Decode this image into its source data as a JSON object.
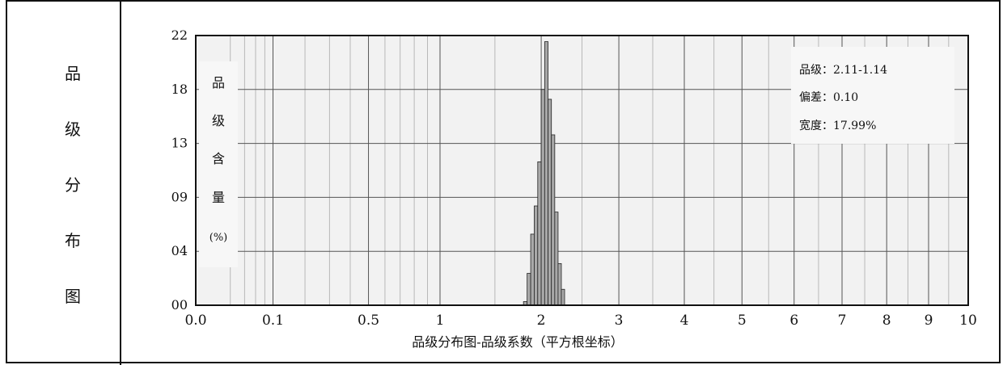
{
  "section_label": [
    "品",
    "级",
    "分",
    "布",
    "图"
  ],
  "chart_data": {
    "type": "bar",
    "title": "",
    "xlabel": "品级分布图-品级系数（平方根坐标）",
    "ylabel_chars": [
      "品",
      "级",
      "含",
      "量",
      "(%)"
    ],
    "x_scale": "sqrt",
    "xlim": [
      0,
      10
    ],
    "x_ticks": [
      {
        "value": 0,
        "label": "0.0"
      },
      {
        "value": 0.1,
        "label": "0.1"
      },
      {
        "value": 0.5,
        "label": "0.5"
      },
      {
        "value": 1,
        "label": "1"
      },
      {
        "value": 2,
        "label": "2"
      },
      {
        "value": 3,
        "label": "3"
      },
      {
        "value": 4,
        "label": "4"
      },
      {
        "value": 5,
        "label": "5"
      },
      {
        "value": 6,
        "label": "6"
      },
      {
        "value": 7,
        "label": "7"
      },
      {
        "value": 8,
        "label": "8"
      },
      {
        "value": 9,
        "label": "9"
      },
      {
        "value": 10,
        "label": "10"
      }
    ],
    "minor_x_gridlines": [
      0.02,
      0.04,
      0.06,
      0.08,
      0.2,
      0.3,
      0.4,
      0.6,
      0.7,
      0.8,
      0.9,
      1.5,
      2.5,
      3.5,
      4.5,
      5.5,
      6.5,
      7.5,
      8.5,
      9.5
    ],
    "ylim": [
      0,
      22
    ],
    "y_ticks": [
      {
        "value": 0,
        "label": "00"
      },
      {
        "value": 4.4,
        "label": "04"
      },
      {
        "value": 8.8,
        "label": "09"
      },
      {
        "value": 13.2,
        "label": "13"
      },
      {
        "value": 17.6,
        "label": "18"
      },
      {
        "value": 22,
        "label": "22"
      }
    ],
    "bars": [
      {
        "x0": 1.8,
        "x1": 1.84,
        "value": 0.3
      },
      {
        "x0": 1.84,
        "x1": 1.88,
        "value": 2.6
      },
      {
        "x0": 1.88,
        "x1": 1.92,
        "value": 5.8
      },
      {
        "x0": 1.92,
        "x1": 1.96,
        "value": 8.1
      },
      {
        "x0": 1.96,
        "x1": 2.0,
        "value": 11.7
      },
      {
        "x0": 2.0,
        "x1": 2.04,
        "value": 17.6
      },
      {
        "x0": 2.04,
        "x1": 2.08,
        "value": 21.5
      },
      {
        "x0": 2.08,
        "x1": 2.12,
        "value": 16.8
      },
      {
        "x0": 2.12,
        "x1": 2.16,
        "value": 13.9
      },
      {
        "x0": 2.16,
        "x1": 2.2,
        "value": 7.6
      },
      {
        "x0": 2.2,
        "x1": 2.24,
        "value": 3.4
      },
      {
        "x0": 2.24,
        "x1": 2.28,
        "value": 1.3
      }
    ],
    "annotation_box": {
      "lines": [
        "品级：2.11-1.14",
        "偏差：0.10",
        "宽度：17.99%"
      ],
      "placement": "top-right"
    },
    "colors": {
      "bar_fill": "#a9a9a9",
      "plot_bg": "#f2f2f2",
      "grid_major": "#555555",
      "grid_minor": "#b8b8b8"
    },
    "grid": true
  }
}
